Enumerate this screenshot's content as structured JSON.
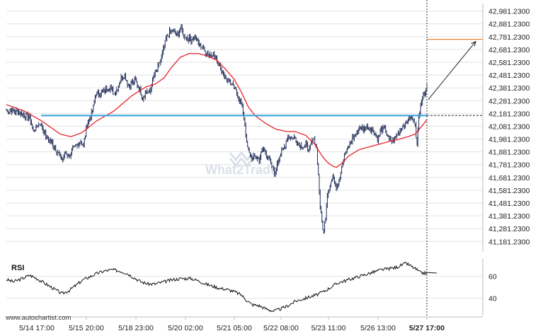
{
  "chart_data": [
    {
      "type": "candlestick",
      "y_ticks": [
        "42,981.2300",
        "42,881.2300",
        "42,781.2300",
        "42,681.2300",
        "42,581.2300",
        "42,481.2300",
        "42,381.2300",
        "42,281.2300",
        "42,181.2300",
        "42,081.2300",
        "41,981.2300",
        "41,881.2300",
        "41,781.2300",
        "41,681.2300",
        "41,581.2300",
        "41,481.2300",
        "41,381.2300",
        "41,281.2300",
        "41,181.2300"
      ],
      "ylim": [
        41100,
        43040
      ],
      "x_ticks": [
        "5/14 17:00",
        "5/15 20:00",
        "5/18 23:00",
        "5/20 02:00",
        "5/21 05:00",
        "5/22 08:00",
        "5/23 11:00",
        "5/26 13:00",
        "5/27 17:00"
      ],
      "support_level": 42165,
      "target_level": 42760,
      "close_anchor": [
        [
          0,
          42205
        ],
        [
          8,
          42200
        ],
        [
          14,
          42190
        ],
        [
          20,
          42165
        ],
        [
          26,
          42150
        ],
        [
          30,
          42040
        ],
        [
          34,
          42080
        ],
        [
          38,
          42110
        ],
        [
          44,
          42000
        ],
        [
          50,
          41960
        ],
        [
          56,
          41890
        ],
        [
          62,
          41820
        ],
        [
          66,
          41870
        ],
        [
          70,
          41850
        ],
        [
          74,
          41900
        ],
        [
          78,
          41920
        ],
        [
          82,
          41960
        ],
        [
          86,
          41930
        ],
        [
          90,
          42100
        ],
        [
          96,
          42200
        ],
        [
          100,
          42340
        ],
        [
          104,
          42330
        ],
        [
          110,
          42360
        ],
        [
          116,
          42390
        ],
        [
          120,
          42330
        ],
        [
          124,
          42380
        ],
        [
          128,
          42460
        ],
        [
          132,
          42480
        ],
        [
          136,
          42400
        ],
        [
          140,
          42420
        ],
        [
          144,
          42440
        ],
        [
          148,
          42380
        ],
        [
          152,
          42300
        ],
        [
          156,
          42360
        ],
        [
          160,
          42340
        ],
        [
          164,
          42470
        ],
        [
          168,
          42520
        ],
        [
          172,
          42600
        ],
        [
          176,
          42700
        ],
        [
          178,
          42760
        ],
        [
          182,
          42820
        ],
        [
          186,
          42830
        ],
        [
          190,
          42780
        ],
        [
          194,
          42850
        ],
        [
          198,
          42790
        ],
        [
          202,
          42770
        ],
        [
          206,
          42760
        ],
        [
          210,
          42780
        ],
        [
          214,
          42730
        ],
        [
          218,
          42700
        ],
        [
          222,
          42660
        ],
        [
          226,
          42640
        ],
        [
          230,
          42650
        ],
        [
          234,
          42600
        ],
        [
          238,
          42560
        ],
        [
          242,
          42480
        ],
        [
          246,
          42450
        ],
        [
          250,
          42420
        ],
        [
          254,
          42380
        ],
        [
          258,
          42330
        ],
        [
          262,
          42250
        ],
        [
          264,
          42180
        ],
        [
          266,
          42100
        ],
        [
          268,
          41950
        ],
        [
          270,
          41880
        ],
        [
          274,
          41830
        ],
        [
          278,
          41840
        ],
        [
          282,
          41820
        ],
        [
          286,
          41900
        ],
        [
          290,
          41870
        ],
        [
          294,
          41800
        ],
        [
          298,
          41740
        ],
        [
          300,
          41700
        ],
        [
          302,
          41800
        ],
        [
          306,
          41870
        ],
        [
          310,
          41920
        ],
        [
          314,
          42010
        ],
        [
          318,
          41990
        ],
        [
          322,
          41990
        ],
        [
          326,
          41940
        ],
        [
          330,
          41920
        ],
        [
          334,
          41930
        ],
        [
          338,
          41900
        ],
        [
          342,
          41980
        ],
        [
          344,
          41960
        ],
        [
          346,
          41900
        ],
        [
          348,
          41700
        ],
        [
          350,
          41450
        ],
        [
          352,
          41330
        ],
        [
          354,
          41250
        ],
        [
          356,
          41380
        ],
        [
          358,
          41560
        ],
        [
          360,
          41600
        ],
        [
          364,
          41690
        ],
        [
          368,
          41600
        ],
        [
          372,
          41680
        ],
        [
          374,
          41780
        ],
        [
          378,
          41870
        ],
        [
          382,
          41920
        ],
        [
          386,
          41990
        ],
        [
          390,
          42020
        ],
        [
          394,
          42080
        ],
        [
          398,
          42050
        ],
        [
          402,
          42080
        ],
        [
          406,
          42060
        ],
        [
          410,
          42040
        ],
        [
          414,
          41980
        ],
        [
          418,
          42050
        ],
        [
          422,
          42060
        ],
        [
          426,
          41990
        ],
        [
          430,
          41960
        ],
        [
          434,
          42000
        ],
        [
          438,
          42040
        ],
        [
          442,
          42080
        ],
        [
          446,
          42100
        ],
        [
          448,
          42140
        ],
        [
          452,
          42140
        ],
        [
          456,
          42110
        ],
        [
          458,
          41920
        ],
        [
          460,
          42150
        ],
        [
          462,
          42260
        ],
        [
          464,
          42300
        ],
        [
          467,
          42360
        ],
        [
          469,
          42390
        ]
      ],
      "ma_anchor": [
        [
          0,
          42250
        ],
        [
          20,
          42200
        ],
        [
          40,
          42120
        ],
        [
          60,
          42020
        ],
        [
          72,
          42000
        ],
        [
          84,
          42030
        ],
        [
          100,
          42120
        ],
        [
          120,
          42200
        ],
        [
          140,
          42320
        ],
        [
          156,
          42390
        ],
        [
          166,
          42410
        ],
        [
          176,
          42460
        ],
        [
          184,
          42540
        ],
        [
          194,
          42620
        ],
        [
          204,
          42650
        ],
        [
          214,
          42650
        ],
        [
          224,
          42630
        ],
        [
          234,
          42600
        ],
        [
          244,
          42530
        ],
        [
          254,
          42450
        ],
        [
          262,
          42350
        ],
        [
          270,
          42230
        ],
        [
          278,
          42160
        ],
        [
          290,
          42100
        ],
        [
          300,
          42060
        ],
        [
          312,
          42040
        ],
        [
          322,
          42040
        ],
        [
          334,
          42010
        ],
        [
          344,
          41940
        ],
        [
          352,
          41850
        ],
        [
          358,
          41800
        ],
        [
          364,
          41770
        ],
        [
          368,
          41760
        ],
        [
          374,
          41790
        ],
        [
          382,
          41850
        ],
        [
          394,
          41900
        ],
        [
          410,
          41930
        ],
        [
          426,
          41960
        ],
        [
          438,
          41980
        ],
        [
          448,
          42000
        ],
        [
          456,
          42020
        ],
        [
          462,
          42070
        ],
        [
          469,
          42130
        ]
      ]
    },
    {
      "type": "line",
      "title": "RSI",
      "y_ticks": [
        "60",
        "40"
      ],
      "ylim": [
        24,
        76
      ],
      "anchor": [
        [
          0,
          57
        ],
        [
          8,
          55
        ],
        [
          18,
          58
        ],
        [
          26,
          61
        ],
        [
          34,
          58
        ],
        [
          42,
          54
        ],
        [
          50,
          50
        ],
        [
          58,
          46
        ],
        [
          62,
          44
        ],
        [
          70,
          47
        ],
        [
          78,
          52
        ],
        [
          86,
          57
        ],
        [
          94,
          60
        ],
        [
          102,
          63
        ],
        [
          110,
          65
        ],
        [
          118,
          66
        ],
        [
          126,
          65
        ],
        [
          134,
          63
        ],
        [
          142,
          59
        ],
        [
          150,
          55
        ],
        [
          158,
          53
        ],
        [
          166,
          53
        ],
        [
          176,
          55
        ],
        [
          186,
          57
        ],
        [
          196,
          58
        ],
        [
          206,
          58
        ],
        [
          214,
          56
        ],
        [
          222,
          53
        ],
        [
          230,
          51
        ],
        [
          238,
          49
        ],
        [
          246,
          48
        ],
        [
          254,
          46
        ],
        [
          262,
          43
        ],
        [
          268,
          38
        ],
        [
          274,
          34
        ],
        [
          282,
          33
        ],
        [
          290,
          30
        ],
        [
          298,
          28
        ],
        [
          306,
          30
        ],
        [
          314,
          33
        ],
        [
          322,
          37
        ],
        [
          330,
          39
        ],
        [
          338,
          41
        ],
        [
          346,
          43
        ],
        [
          354,
          46
        ],
        [
          362,
          50
        ],
        [
          370,
          54
        ],
        [
          378,
          56
        ],
        [
          386,
          58
        ],
        [
          394,
          60
        ],
        [
          402,
          62
        ],
        [
          410,
          64
        ],
        [
          418,
          66
        ],
        [
          426,
          67
        ],
        [
          434,
          68
        ],
        [
          440,
          70
        ],
        [
          446,
          72
        ],
        [
          452,
          69
        ],
        [
          458,
          66
        ],
        [
          462,
          63
        ],
        [
          469,
          63
        ]
      ]
    }
  ],
  "labels": {
    "rsi_title": "RSI",
    "watermark": "What2Trade",
    "website": "www.autochartist.com"
  },
  "colors": {
    "candle": "#1e2a55",
    "ma": "#e8222d",
    "support": "#3aa6dd",
    "target": "#f08030",
    "grid": "#e2e2e2",
    "axis": "#bbbbbb",
    "watermark": "#c9d0dc"
  }
}
